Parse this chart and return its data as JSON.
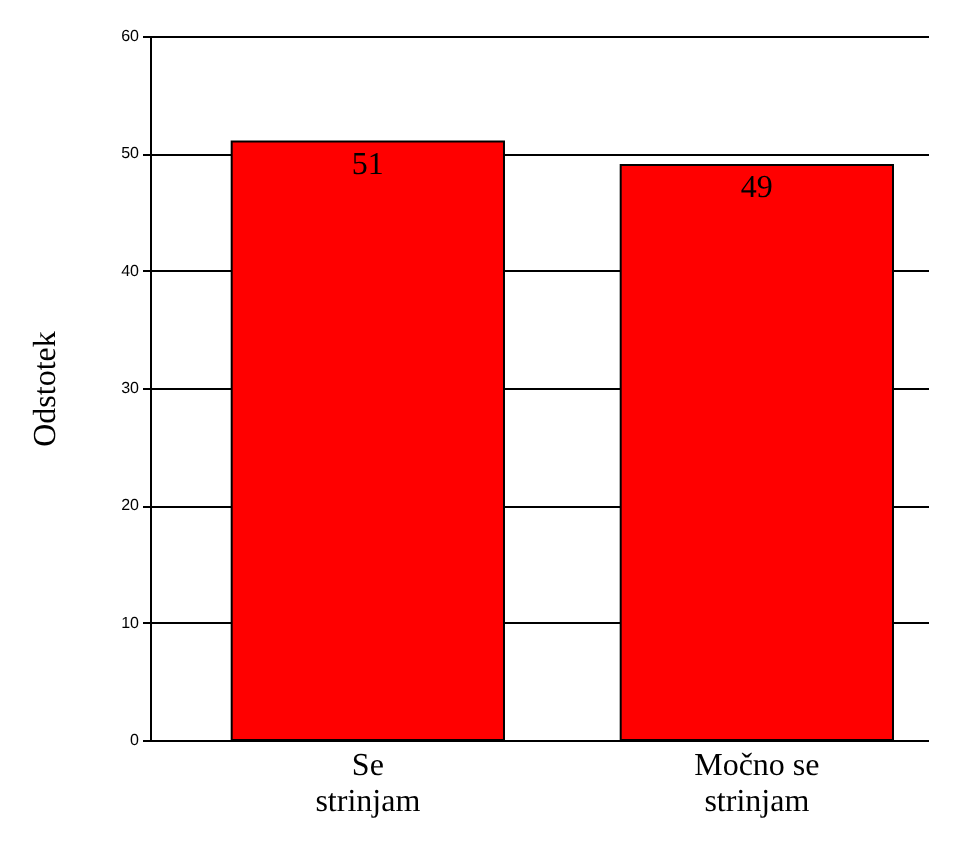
{
  "chart_data": {
    "type": "bar",
    "ylabel": "Odstotek",
    "categories": [
      "Se strinjam",
      "Močno se strinjam"
    ],
    "values": [
      51,
      49
    ],
    "color": "#ff0000",
    "ylim": [
      0,
      60
    ],
    "yticks": [
      0,
      10,
      20,
      30,
      40,
      50,
      60
    ],
    "grid": "y",
    "data_labels": true
  }
}
